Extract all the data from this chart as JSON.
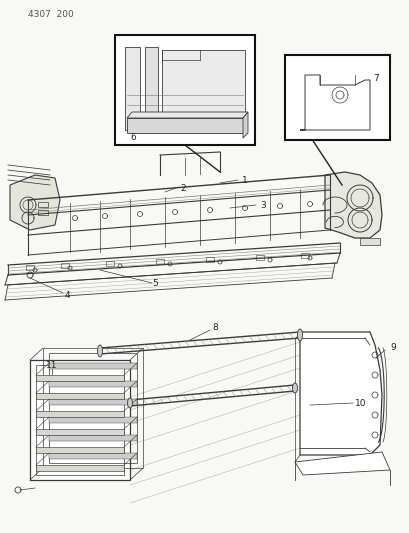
{
  "page_id": "4307  200",
  "bg": "#f5f5f0",
  "lc": "#3a3a3a",
  "tc": "#222222",
  "fw": 4.1,
  "fh": 5.33,
  "dpi": 100,
  "fs": 6.5,
  "lw": 0.65
}
